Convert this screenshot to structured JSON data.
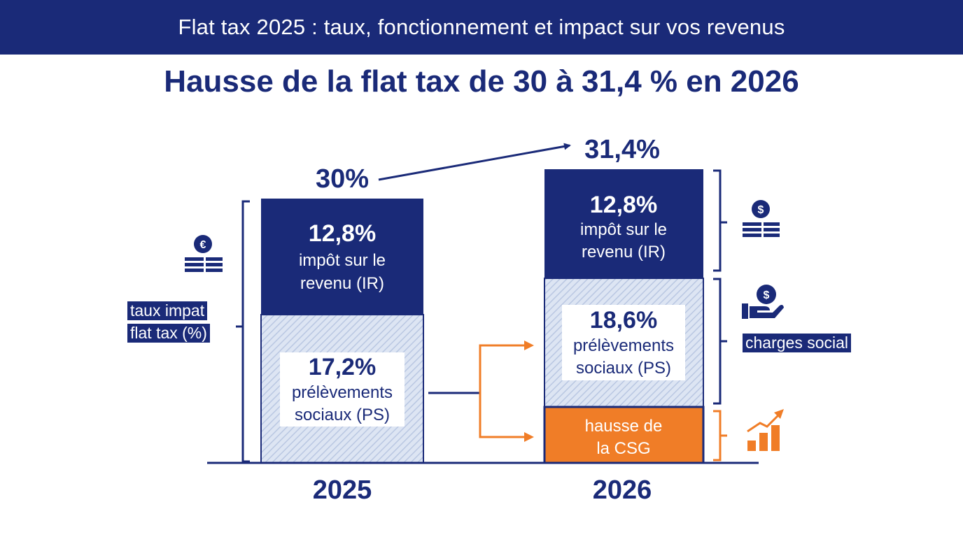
{
  "header": {
    "title": "Flat tax 2025 : taux, fonctionnement et impact sur vos revenus"
  },
  "headline": "Hausse de la flat tax de 30 à 31,4 % en 2026",
  "left_labels": {
    "line1": "taux impat",
    "line2": "flat tax (%)"
  },
  "right_label": "charges social",
  "colors": {
    "navy": "#1a2a78",
    "hatch_bg": "#dde5f3",
    "hatch_line": "#b9c7e2",
    "orange": "#f07d27"
  },
  "icons": [
    "euro-coins-icon",
    "dollar-coins-icon",
    "hand-dollar-icon",
    "rising-bar-chart-icon"
  ],
  "chart_data": {
    "type": "bar",
    "stacked": true,
    "categories": [
      "2025",
      "2026"
    ],
    "totals": [
      "30%",
      "31,4%"
    ],
    "total_values": [
      30,
      31.4
    ],
    "segments": [
      {
        "category": "2025",
        "value_label": "12,8%",
        "label_line1": "impôt sur le",
        "label_line2": "revenu (IR)",
        "style": "navy"
      },
      {
        "category": "2025",
        "value_label": "17,2%",
        "label_line1": "prélèvements",
        "label_line2": "sociaux (PS)",
        "style": "hatch"
      },
      {
        "category": "2026",
        "value_label": "12,8%",
        "label_line1": "impôt sur le",
        "label_line2": "revenu (IR)",
        "style": "navy"
      },
      {
        "category": "2026",
        "value_label": "18,6%",
        "label_line1": "prélèvements",
        "label_line2": "sociaux (PS)",
        "style": "hatch"
      },
      {
        "category": "2026",
        "value_label": "",
        "label_line1": "hausse de",
        "label_line2": "la CSG",
        "style": "orange"
      }
    ]
  }
}
